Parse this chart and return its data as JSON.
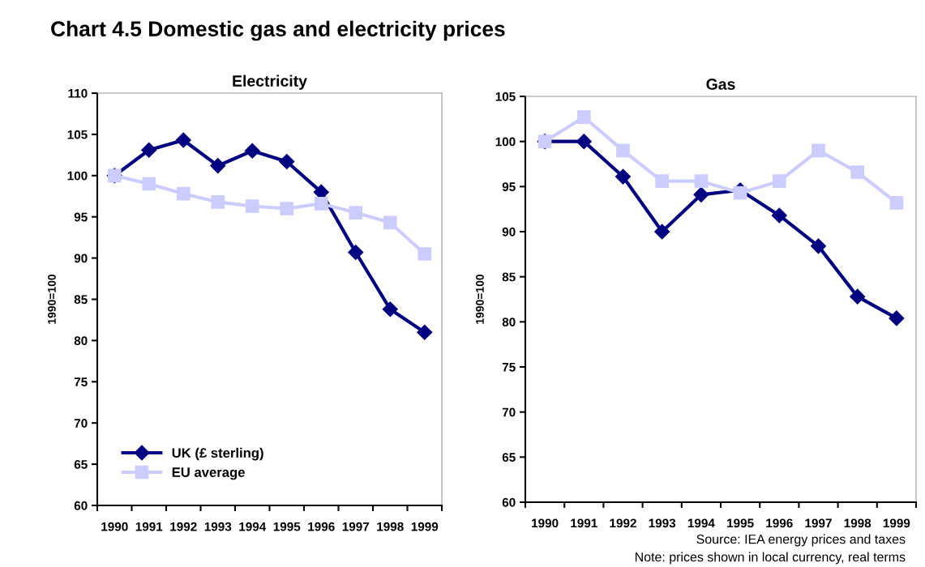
{
  "chart_data": [
    {
      "type": "line",
      "title": "Electricity",
      "ylabel": "1990=100",
      "categories": [
        "1990",
        "1991",
        "1992",
        "1993",
        "1994",
        "1995",
        "1996",
        "1997",
        "1998",
        "1999"
      ],
      "ylim": [
        60,
        110
      ],
      "yticks": [
        60,
        65,
        70,
        75,
        80,
        85,
        90,
        95,
        100,
        105,
        110
      ],
      "legend": "bottom left",
      "grid": false,
      "line_style": "solid",
      "series": [
        {
          "name": "UK (£ sterling)",
          "color": "#000080",
          "marker": "diamond",
          "values": [
            100,
            103.1,
            104.3,
            101.2,
            103.0,
            101.7,
            98.0,
            90.7,
            83.8,
            81.0
          ]
        },
        {
          "name": "EU average",
          "color": "#ccccff",
          "marker": "square",
          "values": [
            100,
            99.0,
            97.8,
            96.8,
            96.3,
            96.0,
            96.6,
            95.5,
            94.3,
            90.5
          ]
        }
      ],
      "annotations": [
        "Chart 4.5 Domestic gas and electricity prices"
      ]
    },
    {
      "type": "line",
      "title": "Gas",
      "ylabel": "1990=100",
      "categories": [
        "1990",
        "1991",
        "1992",
        "1993",
        "1994",
        "1995",
        "1996",
        "1997",
        "1998",
        "1999"
      ],
      "ylim": [
        60,
        105
      ],
      "yticks": [
        60,
        65,
        70,
        75,
        80,
        85,
        90,
        95,
        100,
        105
      ],
      "grid": false,
      "line_style": "solid",
      "series": [
        {
          "color": "#000080",
          "marker": "diamond",
          "values": [
            100,
            100,
            96.1,
            90.0,
            94.1,
            94.6,
            91.8,
            88.4,
            82.8,
            80.4
          ]
        },
        {
          "color": "#ccccff",
          "marker": "square",
          "values": [
            100,
            102.7,
            99.0,
            95.6,
            95.6,
            94.3,
            95.6,
            99.0,
            96.6,
            93.2
          ]
        }
      ],
      "annotations": [
        "Source: IEA energy prices and taxes",
        "Note: prices shown in local currency, real terms"
      ]
    }
  ]
}
